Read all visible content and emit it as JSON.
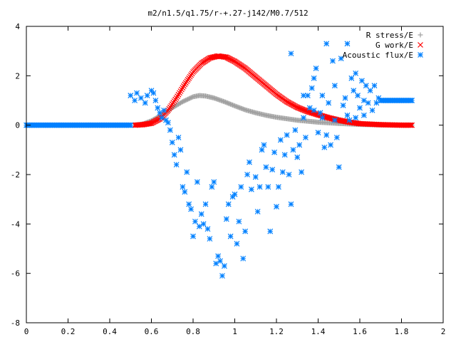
{
  "chart_data": {
    "type": "scatter",
    "title": "m2/n1.5/q1.75/r-+.27-j142/M0.7/512",
    "xlabel": "",
    "ylabel": "",
    "xlim": [
      0,
      2
    ],
    "ylim": [
      -8,
      4
    ],
    "xticks": [
      "0",
      "0.2",
      "0.4",
      "0.6",
      "0.8",
      "1",
      "1.2",
      "1.4",
      "1.6",
      "1.8",
      "2"
    ],
    "yticks": [
      "4",
      "2",
      "0",
      "-2",
      "-4",
      "-6",
      "-8"
    ],
    "grid": false,
    "legend_position": "top-right",
    "series": [
      {
        "name": "R stress/E",
        "marker": "plus",
        "color": "#a0a0a0",
        "points": [
          [
            0.52,
            0.0
          ],
          [
            0.56,
            0.05
          ],
          [
            0.6,
            0.18
          ],
          [
            0.65,
            0.42
          ],
          [
            0.7,
            0.7
          ],
          [
            0.75,
            0.95
          ],
          [
            0.8,
            1.15
          ],
          [
            0.83,
            1.2
          ],
          [
            0.86,
            1.18
          ],
          [
            0.9,
            1.1
          ],
          [
            0.95,
            0.95
          ],
          [
            1.0,
            0.78
          ],
          [
            1.05,
            0.62
          ],
          [
            1.1,
            0.5
          ],
          [
            1.15,
            0.4
          ],
          [
            1.2,
            0.32
          ],
          [
            1.3,
            0.2
          ],
          [
            1.4,
            0.12
          ],
          [
            1.5,
            0.07
          ],
          [
            1.6,
            0.03
          ],
          [
            1.7,
            0.01
          ],
          [
            1.8,
            0.0
          ],
          [
            1.85,
            0.0
          ]
        ]
      },
      {
        "name": "G work/E",
        "marker": "x",
        "color": "#ff0000",
        "points": [
          [
            0.52,
            0.0
          ],
          [
            0.56,
            0.02
          ],
          [
            0.6,
            0.08
          ],
          [
            0.64,
            0.25
          ],
          [
            0.68,
            0.6
          ],
          [
            0.72,
            1.1
          ],
          [
            0.76,
            1.65
          ],
          [
            0.8,
            2.15
          ],
          [
            0.84,
            2.5
          ],
          [
            0.88,
            2.72
          ],
          [
            0.92,
            2.8
          ],
          [
            0.96,
            2.75
          ],
          [
            1.0,
            2.58
          ],
          [
            1.05,
            2.3
          ],
          [
            1.1,
            1.95
          ],
          [
            1.15,
            1.6
          ],
          [
            1.2,
            1.25
          ],
          [
            1.25,
            0.95
          ],
          [
            1.3,
            0.72
          ],
          [
            1.35,
            0.55
          ],
          [
            1.4,
            0.42
          ],
          [
            1.45,
            0.3
          ],
          [
            1.5,
            0.2
          ],
          [
            1.55,
            0.12
          ],
          [
            1.6,
            0.06
          ],
          [
            1.7,
            0.02
          ],
          [
            1.8,
            0.0
          ],
          [
            1.85,
            0.0
          ]
        ]
      },
      {
        "name": "Acoustic flux/E",
        "marker": "star",
        "color": "#0080ff",
        "baseline": {
          "from": 0.0,
          "to": 0.5,
          "value": 0.0
        },
        "plateau": {
          "from": 1.7,
          "to": 1.85,
          "value": 1.0
        },
        "points": [
          [
            0.5,
            1.2
          ],
          [
            0.52,
            1.0
          ],
          [
            0.53,
            1.3
          ],
          [
            0.55,
            1.1
          ],
          [
            0.57,
            0.9
          ],
          [
            0.58,
            1.2
          ],
          [
            0.6,
            1.4
          ],
          [
            0.61,
            1.3
          ],
          [
            0.62,
            1.0
          ],
          [
            0.63,
            0.7
          ],
          [
            0.64,
            0.5
          ],
          [
            0.65,
            0.3
          ],
          [
            0.66,
            0.6
          ],
          [
            0.67,
            0.2
          ],
          [
            0.68,
            0.1
          ],
          [
            0.69,
            -0.2
          ],
          [
            0.7,
            -0.7
          ],
          [
            0.71,
            -1.2
          ],
          [
            0.72,
            -1.6
          ],
          [
            0.73,
            -0.5
          ],
          [
            0.74,
            -1.0
          ],
          [
            0.75,
            -2.5
          ],
          [
            0.76,
            -2.7
          ],
          [
            0.77,
            -1.9
          ],
          [
            0.78,
            -3.2
          ],
          [
            0.79,
            -3.4
          ],
          [
            0.8,
            -4.5
          ],
          [
            0.81,
            -3.9
          ],
          [
            0.82,
            -2.3
          ],
          [
            0.83,
            -4.1
          ],
          [
            0.84,
            -3.6
          ],
          [
            0.85,
            -4.0
          ],
          [
            0.86,
            -3.2
          ],
          [
            0.87,
            -4.2
          ],
          [
            0.88,
            -4.6
          ],
          [
            0.89,
            -2.5
          ],
          [
            0.9,
            -2.3
          ],
          [
            0.91,
            -5.6
          ],
          [
            0.92,
            -5.3
          ],
          [
            0.93,
            -5.5
          ],
          [
            0.94,
            -6.1
          ],
          [
            0.95,
            -5.7
          ],
          [
            0.96,
            -3.8
          ],
          [
            0.97,
            -3.2
          ],
          [
            0.98,
            -4.5
          ],
          [
            0.99,
            -2.9
          ],
          [
            1.0,
            -2.8
          ],
          [
            1.01,
            -4.8
          ],
          [
            1.02,
            -3.9
          ],
          [
            1.03,
            -2.5
          ],
          [
            1.04,
            -5.4
          ],
          [
            1.05,
            -4.3
          ],
          [
            1.06,
            -2.0
          ],
          [
            1.07,
            -1.5
          ],
          [
            1.08,
            -2.6
          ],
          [
            1.1,
            -2.1
          ],
          [
            1.11,
            -3.5
          ],
          [
            1.12,
            -2.5
          ],
          [
            1.13,
            -1.0
          ],
          [
            1.14,
            -0.8
          ],
          [
            1.15,
            -1.7
          ],
          [
            1.16,
            -2.5
          ],
          [
            1.17,
            -4.3
          ],
          [
            1.18,
            -1.8
          ],
          [
            1.19,
            -1.1
          ],
          [
            1.2,
            -3.3
          ],
          [
            1.21,
            -2.5
          ],
          [
            1.22,
            -0.6
          ],
          [
            1.23,
            -1.9
          ],
          [
            1.24,
            -1.2
          ],
          [
            1.25,
            -0.4
          ],
          [
            1.26,
            -2.0
          ],
          [
            1.27,
            -3.2
          ],
          [
            1.28,
            -1.0
          ],
          [
            1.29,
            -0.2
          ],
          [
            1.3,
            -1.3
          ],
          [
            1.31,
            -0.8
          ],
          [
            1.32,
            -1.9
          ],
          [
            1.33,
            0.3
          ],
          [
            1.34,
            -0.5
          ],
          [
            1.35,
            1.2
          ],
          [
            1.36,
            0.7
          ],
          [
            1.37,
            1.5
          ],
          [
            1.38,
            1.9
          ],
          [
            1.39,
            2.3
          ],
          [
            1.4,
            -0.3
          ],
          [
            1.41,
            0.5
          ],
          [
            1.42,
            0.3
          ],
          [
            1.43,
            -0.9
          ],
          [
            1.44,
            -0.4
          ],
          [
            1.45,
            0.9
          ],
          [
            1.46,
            -0.8
          ],
          [
            1.47,
            2.6
          ],
          [
            1.48,
            0.2
          ],
          [
            1.49,
            -0.5
          ],
          [
            1.5,
            -1.7
          ],
          [
            1.51,
            2.7
          ],
          [
            1.52,
            0.8
          ],
          [
            1.53,
            1.1
          ],
          [
            1.54,
            0.4
          ],
          [
            1.55,
            0.2
          ],
          [
            1.56,
            1.9
          ],
          [
            1.57,
            1.4
          ],
          [
            1.58,
            0.3
          ],
          [
            1.59,
            1.2
          ],
          [
            1.6,
            0.7
          ],
          [
            1.61,
            1.8
          ],
          [
            1.62,
            1.0
          ],
          [
            1.63,
            1.6
          ],
          [
            1.64,
            0.9
          ],
          [
            1.65,
            1.4
          ],
          [
            1.66,
            0.6
          ],
          [
            1.67,
            1.6
          ],
          [
            1.68,
            0.9
          ],
          [
            1.69,
            1.1
          ],
          [
            1.27,
            2.9
          ],
          [
            1.33,
            1.2
          ],
          [
            1.38,
            0.6
          ],
          [
            1.42,
            1.2
          ],
          [
            1.44,
            3.3
          ],
          [
            1.48,
            1.6
          ],
          [
            1.54,
            3.3
          ],
          [
            1.58,
            2.1
          ],
          [
            1.62,
            0.4
          ]
        ]
      }
    ]
  }
}
